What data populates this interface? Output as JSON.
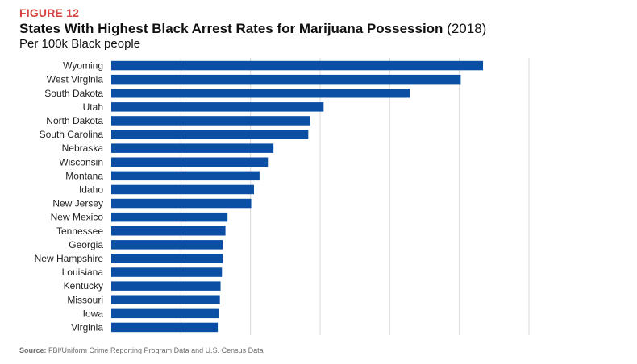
{
  "figure_label": "FIGURE 12",
  "title": "States With Highest Black Arrest Rates for Marijuana Possession",
  "title_suffix": "(2018)",
  "subtitle": "Per 100k Black people",
  "source_prefix": "Source:",
  "source_text": "FBI/Uniform Crime Reporting Program Data and U.S. Census Data",
  "colors": {
    "bar": "#0a4fa3",
    "figure_label": "#d64545",
    "grid": "#d9d9d9"
  },
  "chart_data": {
    "type": "bar",
    "orientation": "horizontal",
    "title": "States With Highest Black Arrest Rates for Marijuana Possession (2018)",
    "subtitle": "Per 100k Black people",
    "categories": [
      "Wyoming",
      "West Virginia",
      "South Dakota",
      "Utah",
      "North Dakota",
      "South Carolina",
      "Nebraska",
      "Wisconsin",
      "Montana",
      "Idaho",
      "New Jersey",
      "New Mexico",
      "Tennessee",
      "Georgia",
      "New Hampshire",
      "Louisiana",
      "Kentucky",
      "Missouri",
      "Iowa",
      "Virginia"
    ],
    "values": [
      2670,
      2510,
      2145,
      1525,
      1430,
      1415,
      1165,
      1125,
      1065,
      1025,
      1005,
      835,
      820,
      800,
      800,
      795,
      785,
      780,
      775,
      765
    ],
    "xlim": [
      0,
      3000
    ],
    "grid": true,
    "tick_labels_visible": false
  }
}
